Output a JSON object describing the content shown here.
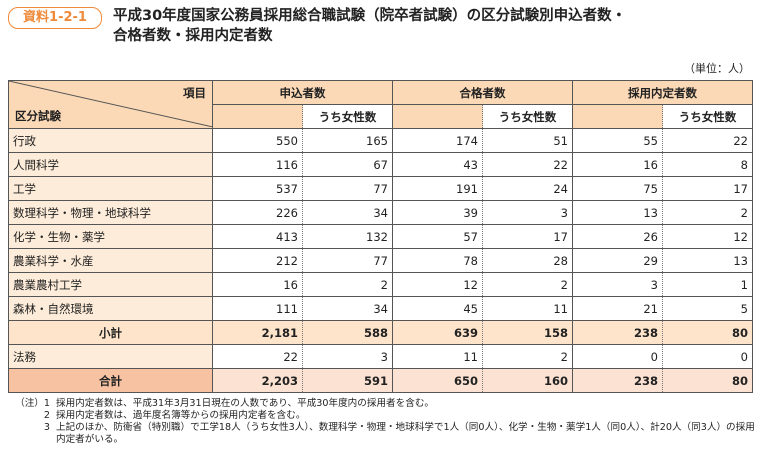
{
  "header": {
    "badge": "資料1-2-1",
    "title_lines": [
      "平成30年度国家公務員採用総合職試験（院卒者試験）の区分試験別申込者数・",
      "合格者数・採用内定者数"
    ]
  },
  "unit": "（単位：人）",
  "table": {
    "corner_top": "項目",
    "corner_bottom": "区分試験",
    "groups": [
      "申込者数",
      "合格者数",
      "採用内定者数"
    ],
    "subheads": [
      "うち女性数",
      "うち女性数",
      "うち女性数"
    ],
    "rows": [
      {
        "label": "行政",
        "cells": [
          "550",
          "165",
          "174",
          "51",
          "55",
          "22"
        ]
      },
      {
        "label": "人間科学",
        "cells": [
          "116",
          "67",
          "43",
          "22",
          "16",
          "8"
        ]
      },
      {
        "label": "工学",
        "cells": [
          "537",
          "77",
          "191",
          "24",
          "75",
          "17"
        ]
      },
      {
        "label": "数理科学・物理・地球科学",
        "cells": [
          "226",
          "34",
          "39",
          "3",
          "13",
          "2"
        ]
      },
      {
        "label": "化学・生物・薬学",
        "cells": [
          "413",
          "132",
          "57",
          "17",
          "26",
          "12"
        ]
      },
      {
        "label": "農業科学・水産",
        "cells": [
          "212",
          "77",
          "78",
          "28",
          "29",
          "13"
        ]
      },
      {
        "label": "農業農村工学",
        "cells": [
          "16",
          "2",
          "12",
          "2",
          "3",
          "1"
        ]
      },
      {
        "label": "森林・自然環境",
        "cells": [
          "111",
          "34",
          "45",
          "11",
          "21",
          "5"
        ]
      },
      {
        "label": "小計",
        "cells": [
          "2,181",
          "588",
          "639",
          "158",
          "238",
          "80"
        ]
      },
      {
        "label": "法務",
        "cells": [
          "22",
          "3",
          "11",
          "2",
          "0",
          "0"
        ]
      },
      {
        "label": "合計",
        "cells": [
          "2,203",
          "591",
          "650",
          "160",
          "238",
          "80"
        ]
      }
    ]
  },
  "notes": [
    {
      "num": "（注）1",
      "text": "採用内定者数は、平成31年3月31日現在の人数であり、平成30年度内の採用者を含む。"
    },
    {
      "num": "2",
      "text": "採用内定者数は、過年度名簿等からの採用内定者を含む。"
    },
    {
      "num": "3",
      "text": "上記のほか、防衛省（特別職）で工学18人（うち女性3人）、数理科学・物理・地球科学で1人（同0人）、化学・生物・薬学1人（同0人）、計20人（同3人）の採用内定者がいる。"
    }
  ]
}
